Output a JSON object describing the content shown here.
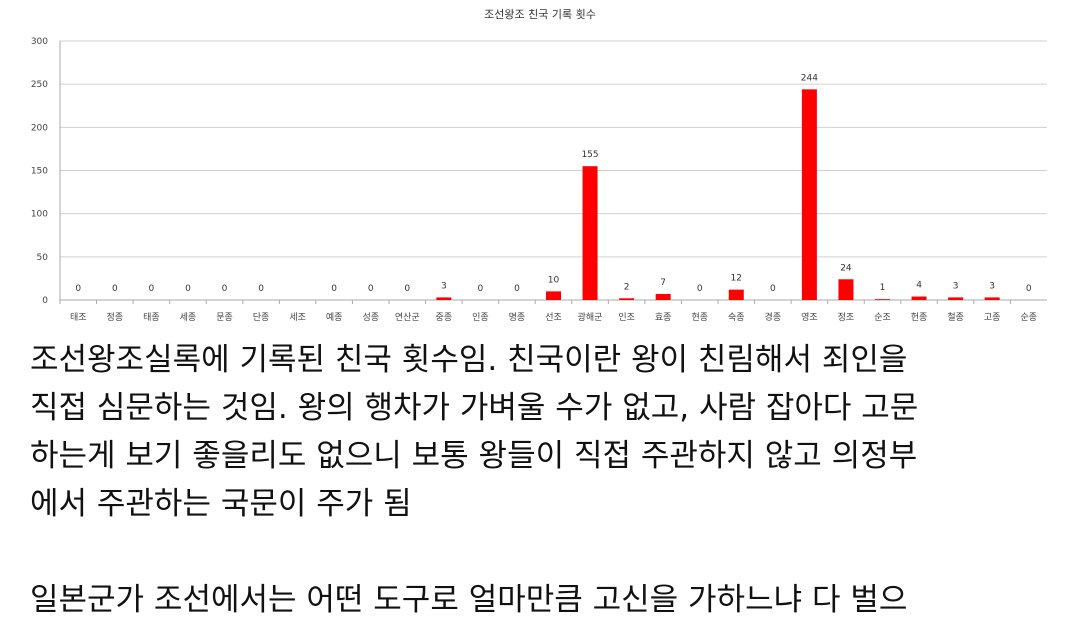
{
  "chart_data": {
    "type": "bar",
    "title": "조선왕조 친국 기록 횟수",
    "xlabel": "",
    "ylabel": "",
    "ylim": [
      0,
      300
    ],
    "yticks": [
      0,
      50,
      100,
      150,
      200,
      250,
      300
    ],
    "grid": true,
    "bar_color": "#ff0000",
    "categories": [
      "태조",
      "정종",
      "태종",
      "세종",
      "문종",
      "단종",
      "세조",
      "예종",
      "성종",
      "연산군",
      "중종",
      "인종",
      "명종",
      "선조",
      "광해군",
      "인조",
      "효종",
      "현종",
      "숙종",
      "경종",
      "영조",
      "정조",
      "순조",
      "헌종",
      "철종",
      "고종",
      "순종"
    ],
    "values": [
      0,
      0,
      0,
      0,
      0,
      0,
      null,
      0,
      0,
      0,
      3,
      0,
      0,
      10,
      155,
      2,
      7,
      0,
      12,
      0,
      244,
      24,
      1,
      4,
      3,
      3,
      0
    ]
  },
  "text": {
    "lines": [
      "조선왕조실록에 기록된 친국 횟수임. 친국이란 왕이 친림해서 죄인을",
      "직접 심문하는 것임. 왕의 행차가 가벼울 수가 없고, 사람 잡아다 고문",
      "하는게 보기 좋을리도 없으니 보통 왕들이 직접 주관하지 않고 의정부",
      "에서 주관하는 국문이 주가 됨"
    ],
    "next_paragraph": "일본군가 조선에서는 어떤 도구로 얼마만큼 고신을 가하느냐 다 벌으"
  }
}
